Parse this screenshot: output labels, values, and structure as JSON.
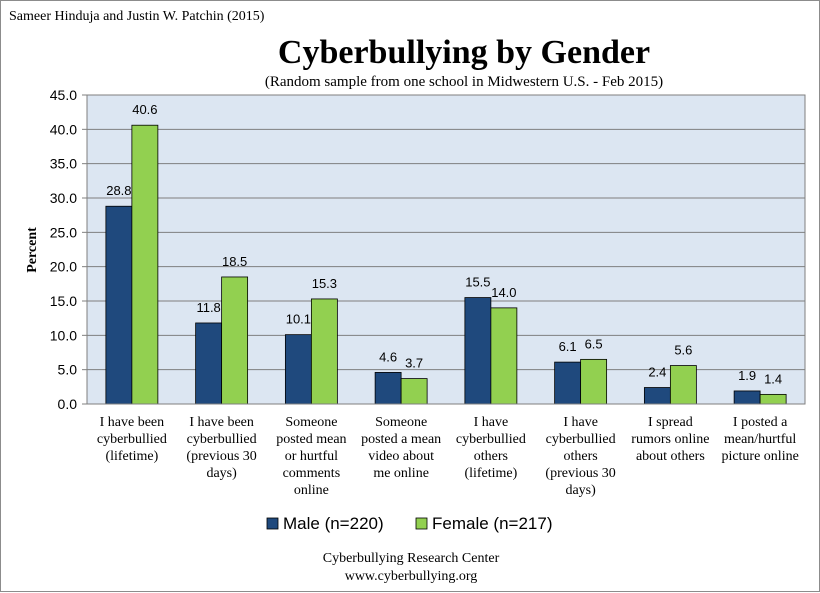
{
  "credit": "Sameer Hinduja and Justin W. Patchin (2015)",
  "footer": {
    "line1": "Cyberbullying Research Center",
    "line2": "www.cyberbullying.org"
  },
  "colors": {
    "male": "#1f497d",
    "female": "#92d050",
    "plot_bg": "#dce6f2",
    "grid": "#7f7f7f"
  },
  "chart_data": {
    "type": "bar",
    "title": "Cyberbullying by Gender",
    "subtitle": "(Random sample from one school in Midwestern U.S. - Feb 2015)",
    "ylabel": "Percent",
    "ylim": [
      0,
      45
    ],
    "yticks": [
      "0.0",
      "5.0",
      "10.0",
      "15.0",
      "20.0",
      "25.0",
      "30.0",
      "35.0",
      "40.0",
      "45.0"
    ],
    "grid": true,
    "legend_position": "bottom",
    "categories": [
      [
        "I have been",
        "cyberbullied",
        "(lifetime)"
      ],
      [
        "I have been",
        "cyberbullied",
        "(previous 30",
        "days)"
      ],
      [
        "Someone",
        "posted mean",
        "or hurtful",
        "comments",
        "online"
      ],
      [
        "Someone",
        "posted a mean",
        "video about",
        "me online"
      ],
      [
        "I have",
        "cyberbullied",
        "others",
        "(lifetime)"
      ],
      [
        "I have",
        "cyberbullied",
        "others",
        "(previous 30",
        "days)"
      ],
      [
        "I spread",
        "rumors online",
        "about others"
      ],
      [
        "I posted a",
        "mean/hurtful",
        "picture online"
      ]
    ],
    "series": [
      {
        "name": "Male (n=220)",
        "values": [
          28.8,
          11.8,
          10.1,
          4.6,
          15.5,
          6.1,
          2.4,
          1.9
        ],
        "labels": [
          "28.8",
          "11.8",
          "10.1",
          "4.6",
          "15.5",
          "6.1",
          "2.4",
          "1.9"
        ]
      },
      {
        "name": "Female (n=217)",
        "values": [
          40.6,
          18.5,
          15.3,
          3.7,
          14.0,
          6.5,
          5.6,
          1.4
        ],
        "labels": [
          "40.6",
          "18.5",
          "15.3",
          "3.7",
          "14.0",
          "6.5",
          "5.6",
          "1.4"
        ]
      }
    ]
  }
}
